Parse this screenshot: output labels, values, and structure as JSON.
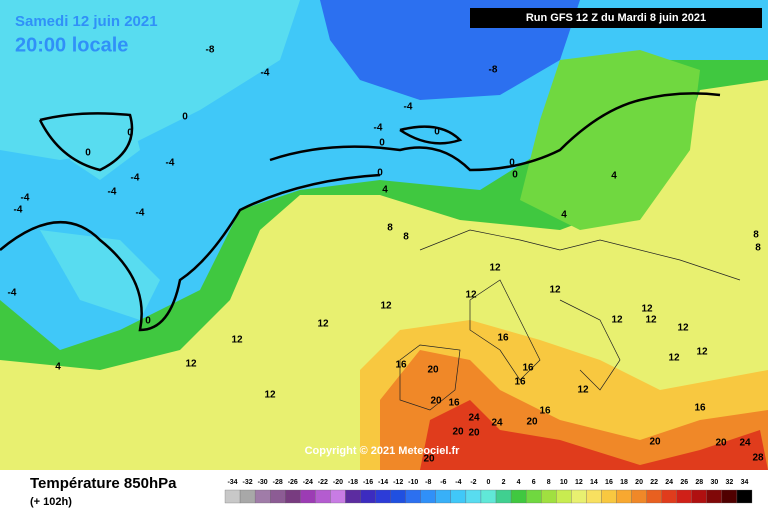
{
  "header": {
    "date": "Samedi 12 juin 2021",
    "time": "20:00 locale",
    "run": "Run GFS 12 Z du Mardi 8 juin 2021"
  },
  "copyright": "Copyright © 2021 Meteociel.fr",
  "legend": {
    "title": "Température 850hPa",
    "subtitle": "(+ 102h)",
    "levels": [
      -34,
      -32,
      -30,
      -28,
      -26,
      -24,
      -22,
      -20,
      -18,
      -16,
      -14,
      -12,
      -10,
      -8,
      -6,
      -4,
      -2,
      0,
      2,
      4,
      6,
      8,
      10,
      12,
      14,
      16,
      18,
      20,
      22,
      24,
      26,
      28,
      30,
      32,
      34
    ],
    "colors": [
      "#c8c8c8",
      "#a8a8a8",
      "#a07ca8",
      "#8c5c94",
      "#783c80",
      "#9c3cb4",
      "#b45cd0",
      "#c87ce4",
      "#5c2ca0",
      "#3c2cc0",
      "#2c3cd8",
      "#2050e0",
      "#2c70f0",
      "#3090f8",
      "#38b0f8",
      "#40c8f8",
      "#58dcf0",
      "#60e8d8",
      "#40d090",
      "#40c840",
      "#70d840",
      "#a0e040",
      "#c8ec50",
      "#e8f070",
      "#f8e060",
      "#f8c840",
      "#f8a830",
      "#f08828",
      "#e86020",
      "#e03c1c",
      "#d02018",
      "#b01010",
      "#800808",
      "#500000",
      "#000000"
    ]
  },
  "map": {
    "contour_labels": [
      -8,
      -4,
      -8,
      0,
      0,
      0,
      -4,
      -4,
      -4,
      -4,
      -4,
      -4,
      -4,
      -4,
      0,
      0,
      0,
      0,
      0,
      4,
      4,
      4,
      8,
      8,
      8,
      8,
      -4,
      0,
      4,
      12,
      12,
      12,
      12,
      12,
      12,
      12,
      12,
      12,
      12,
      12,
      12,
      12,
      12,
      12,
      16,
      16,
      20,
      16,
      16,
      16,
      16,
      20,
      16,
      24,
      24,
      20,
      20,
      20,
      20,
      20,
      24,
      28,
      20
    ]
  }
}
